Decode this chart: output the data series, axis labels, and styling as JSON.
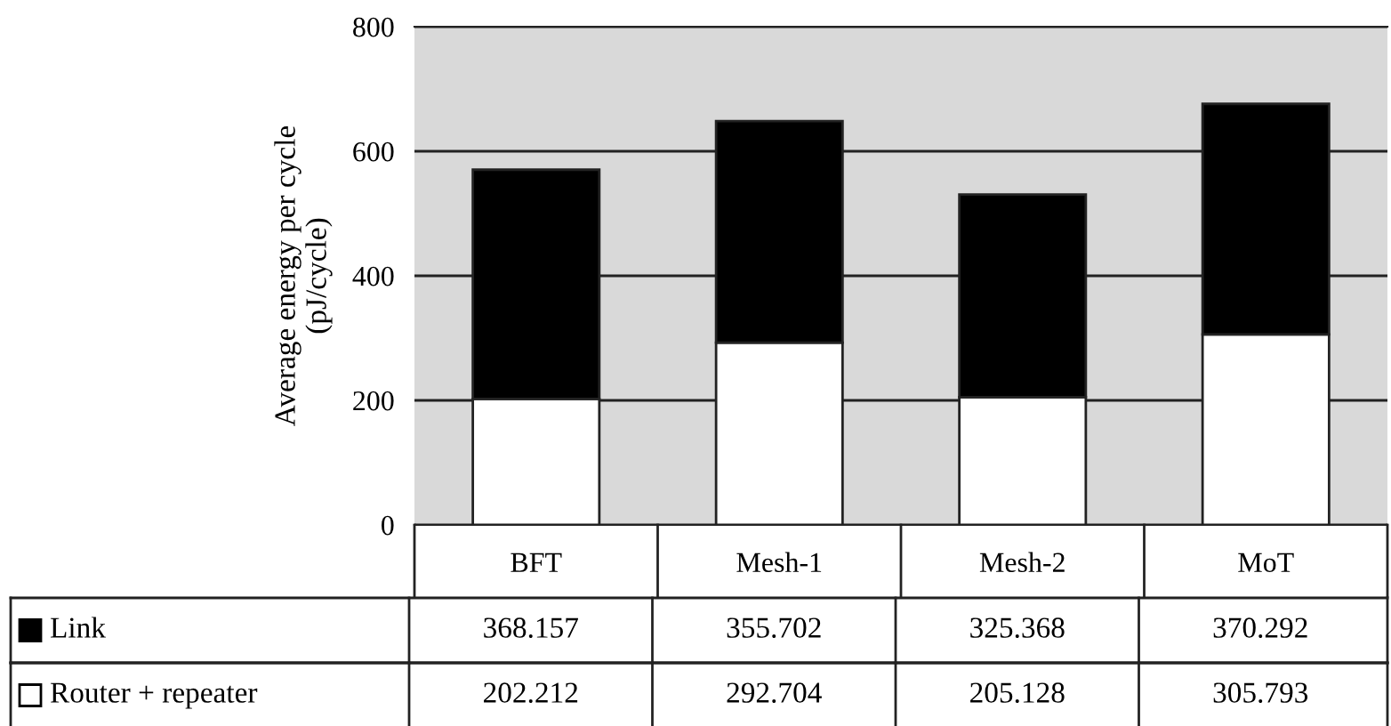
{
  "chart_data": {
    "type": "bar",
    "stacked": true,
    "ylabel": "Average energy per cycle\n(pJ/cycle)",
    "categories": [
      "BFT",
      "Mesh-1",
      "Mesh-2",
      "MoT"
    ],
    "series": [
      {
        "name": "Router + repeater",
        "color": "#ffffff",
        "values": [
          202.212,
          292.704,
          205.128,
          305.793
        ]
      },
      {
        "name": "Link",
        "color": "#000000",
        "values": [
          368.157,
          355.702,
          325.368,
          370.292
        ]
      }
    ],
    "ylim": [
      0,
      800
    ],
    "yticks": [
      0,
      200,
      400,
      600,
      800
    ],
    "grid": "y",
    "data_labels": true,
    "legend": "bottom left"
  }
}
